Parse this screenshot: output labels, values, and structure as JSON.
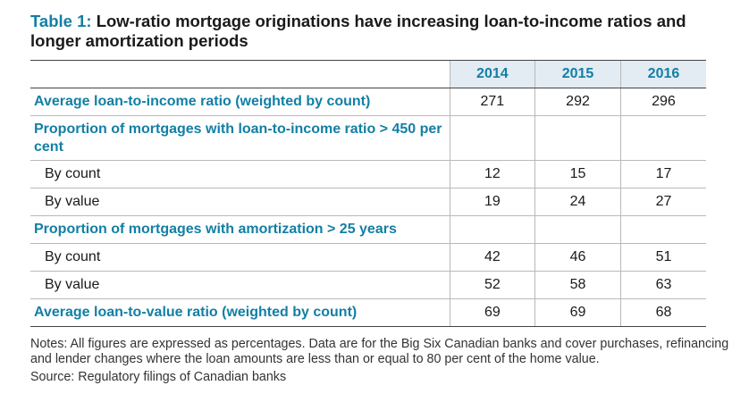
{
  "title": {
    "number": "Table 1:",
    "text": "Low-ratio mortgage originations have increasing loan-to-income ratios and longer amortization periods"
  },
  "columns": [
    "2014",
    "2015",
    "2016"
  ],
  "rows": [
    {
      "label": "Average loan-to-income ratio (weighted by count)",
      "values": [
        "271",
        "292",
        "296"
      ]
    },
    {
      "label": "Proportion of mortgages with loan-to-income ratio > 450 per cent",
      "values": [
        "",
        "",
        ""
      ]
    },
    {
      "label": "By count",
      "values": [
        "12",
        "15",
        "17"
      ]
    },
    {
      "label": "By value",
      "values": [
        "19",
        "24",
        "27"
      ]
    },
    {
      "label": "Proportion of mortgages with amortization > 25 years",
      "values": [
        "",
        "",
        ""
      ]
    },
    {
      "label": "By count",
      "values": [
        "42",
        "46",
        "51"
      ]
    },
    {
      "label": "By value",
      "values": [
        "52",
        "58",
        "63"
      ]
    },
    {
      "label": "Average loan-to-value ratio (weighted by count)",
      "values": [
        "69",
        "69",
        "68"
      ]
    }
  ],
  "notes": "Notes: All figures are expressed as percentages. Data are for the Big Six Canadian banks and cover purchases, refinancing and lender changes where the loan amounts are less than or equal to 80 per cent of the home value.",
  "source": "Source: Regulatory filings of Canadian banks",
  "colors": {
    "accent": "#127fa5",
    "header_bg": "#e3ebf3",
    "rule": "#b9b9b9"
  }
}
